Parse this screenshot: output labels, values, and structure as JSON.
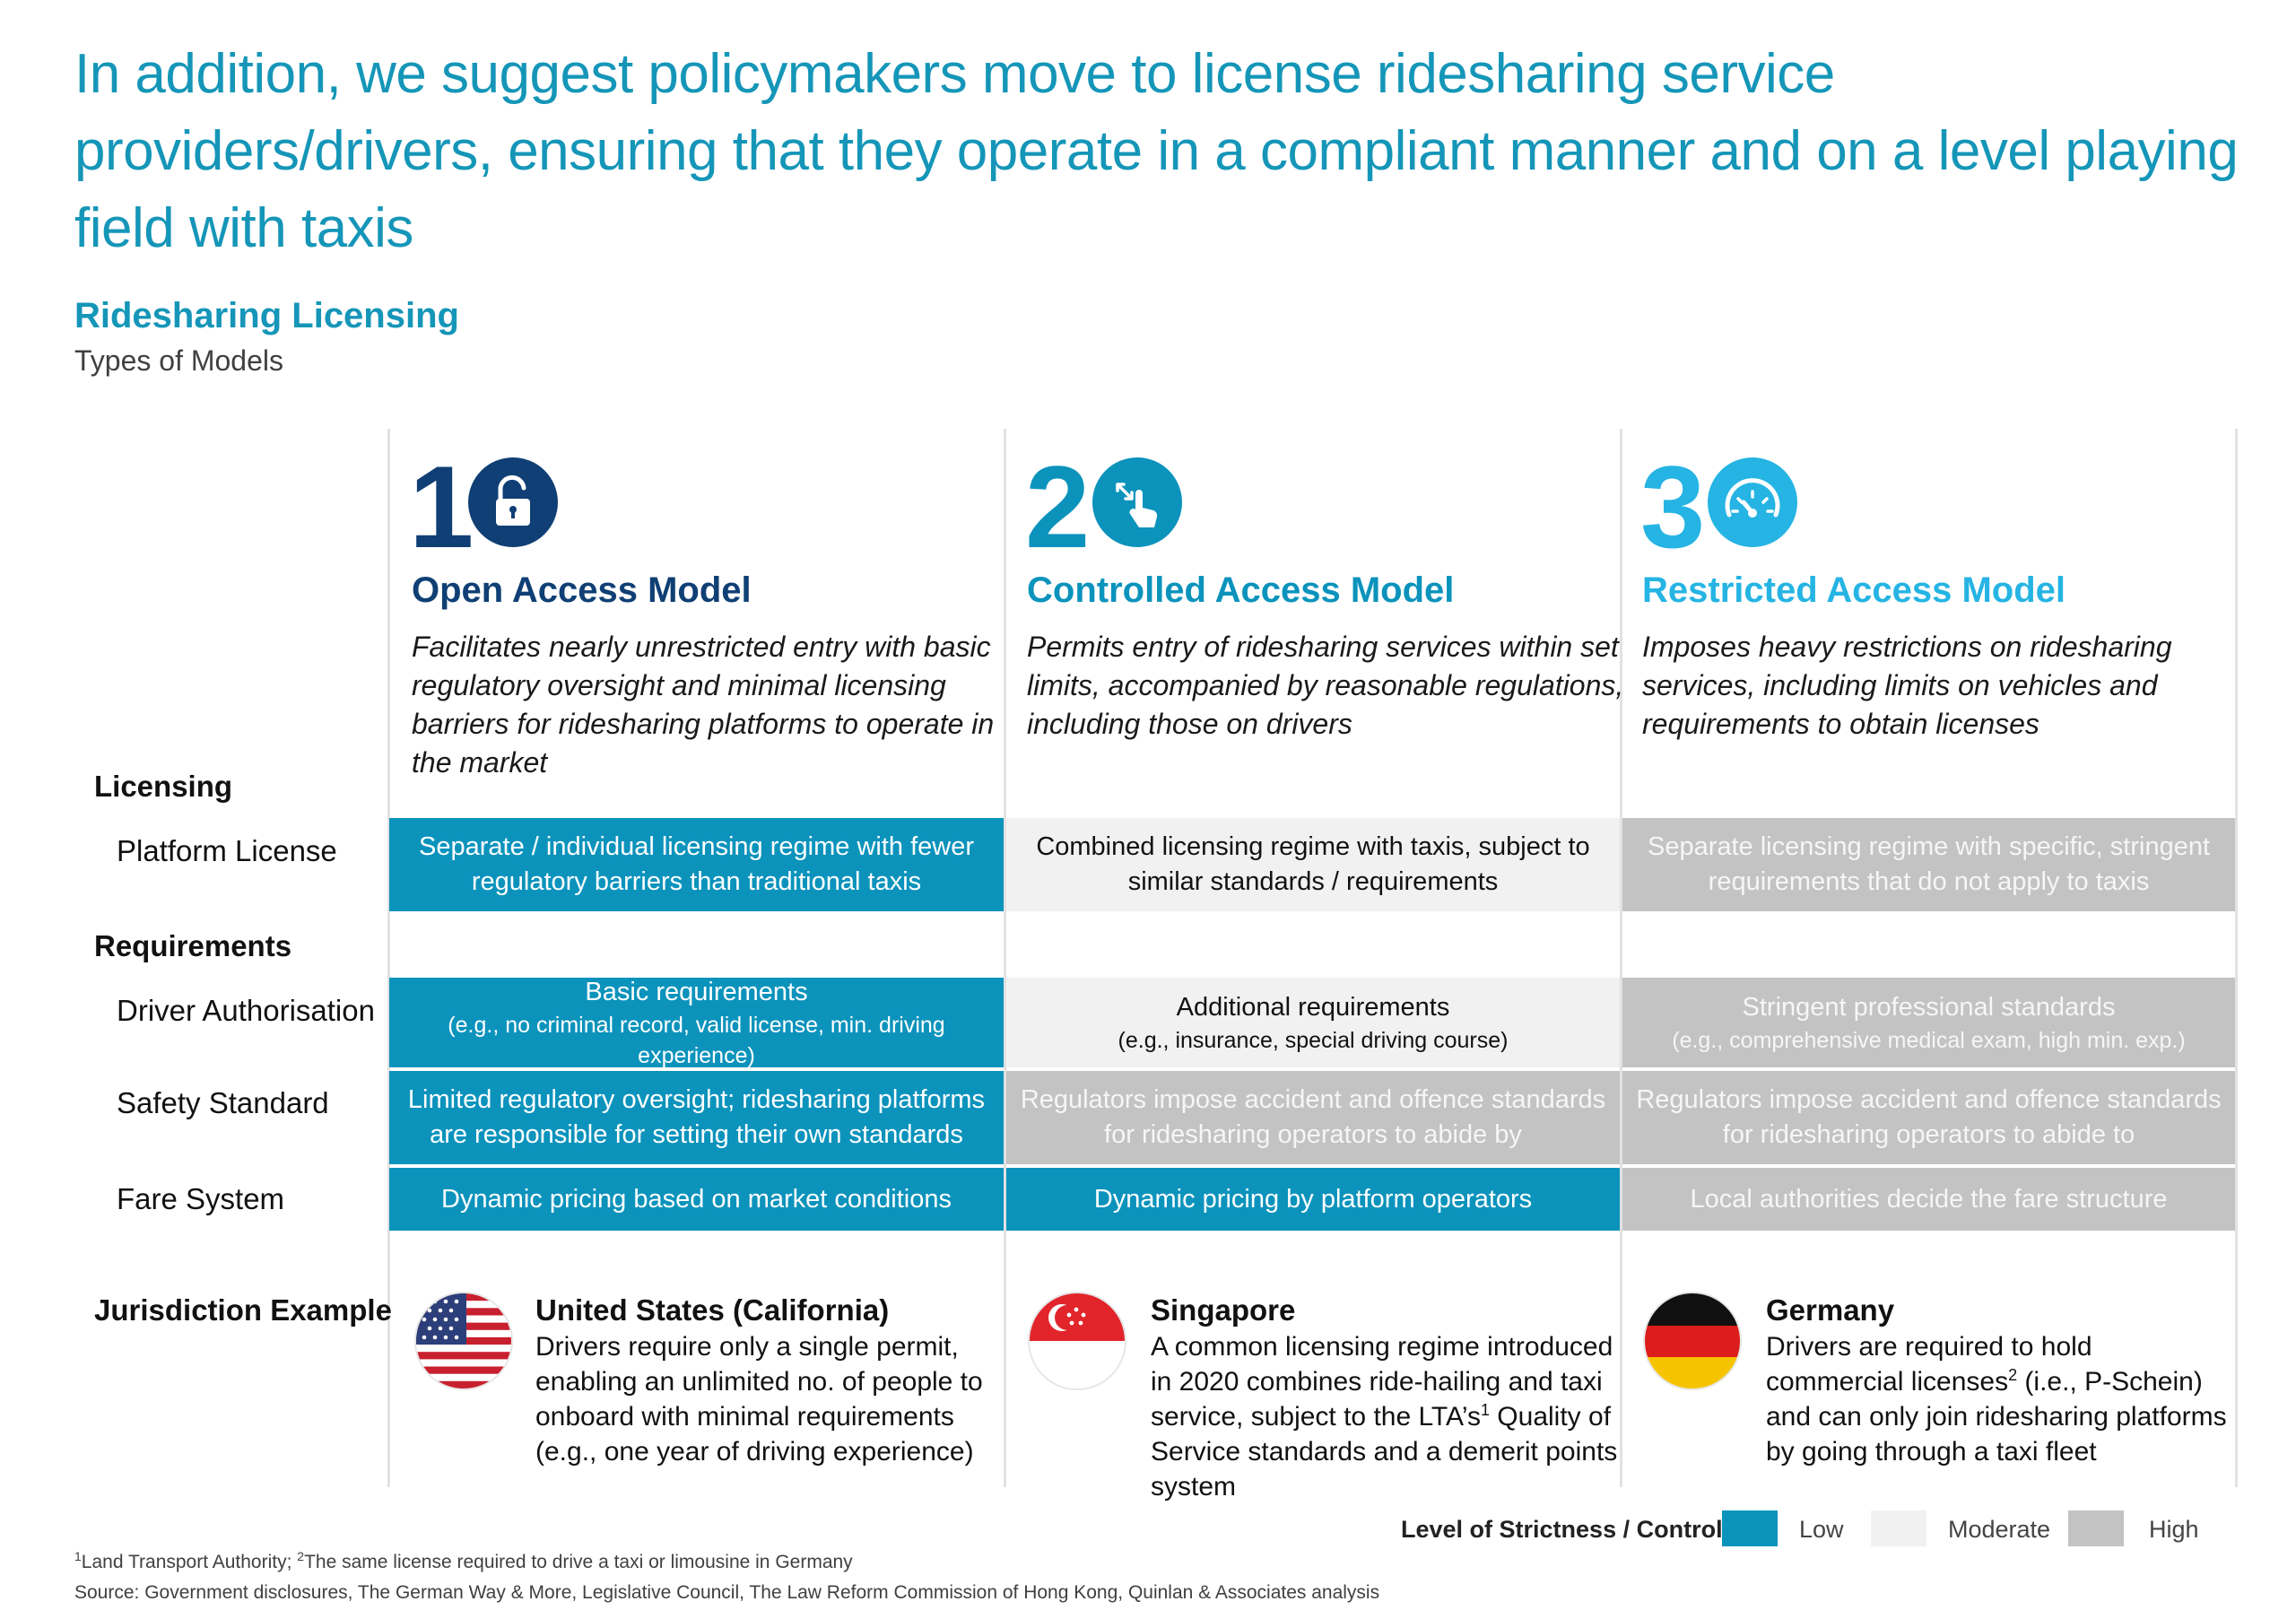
{
  "title": "In addition, we suggest policymakers move to license ridesharing service providers/drivers, ensuring that they operate in a compliant manner and on a level playing field with taxis",
  "section": {
    "heading": "Ridesharing Licensing",
    "subheading": "Types of Models"
  },
  "colors": {
    "accent": "#1596b8",
    "navy": "#0f3f74",
    "mid_blue": "#0b93bc",
    "light_blue": "#25b4e3",
    "low": "#0b93bc",
    "moderate": "#f1f1f1",
    "high": "#c3c3c3"
  },
  "models": [
    {
      "number": "1",
      "icon": "padlock-open-icon",
      "name": "Open Access Model",
      "description": "Facilitates nearly unrestricted entry with basic regulatory oversight and minimal licensing barriers for ridesharing platforms to operate in the market"
    },
    {
      "number": "2",
      "icon": "hand-tap-icon",
      "name": "Controlled Access Model",
      "description": "Permits entry of ridesharing services within set limits, accompanied by reasonable regulations, including those on drivers"
    },
    {
      "number": "3",
      "icon": "speedometer-icon",
      "name": "Restricted Access Model",
      "description": "Imposes heavy restrictions on ridesharing services, including limits on vehicles and requirements to obtain licenses"
    }
  ],
  "row_groups": {
    "licensing": "Licensing",
    "requirements": "Requirements",
    "jurisdiction": "Jurisdiction Example"
  },
  "rows": {
    "platform_license": {
      "label": "Platform License",
      "cells": [
        {
          "level": "Low",
          "text": "Separate / individual licensing regime with fewer regulatory barriers than traditional taxis"
        },
        {
          "level": "Moderate",
          "text": "Combined licensing regime with taxis, subject to similar standards / requirements"
        },
        {
          "level": "High",
          "text": "Separate licensing regime with specific, stringent requirements that do not apply to taxis"
        }
      ]
    },
    "driver_authorisation": {
      "label": "Driver Authorisation",
      "cells": [
        {
          "level": "Low",
          "text": "Basic requirements",
          "note": "(e.g., no criminal record, valid license, min. driving experience)"
        },
        {
          "level": "Moderate",
          "text": "Additional requirements",
          "note": "(e.g., insurance, special driving course)"
        },
        {
          "level": "High",
          "text": "Stringent professional standards",
          "note": "(e.g., comprehensive medical exam, high min. exp.)"
        }
      ]
    },
    "safety_standard": {
      "label": "Safety Standard",
      "cells": [
        {
          "level": "Low",
          "text": "Limited regulatory oversight; ridesharing platforms are responsible for setting their own standards"
        },
        {
          "level": "High",
          "text": "Regulators impose accident and offence standards for ridesharing operators to abide by"
        },
        {
          "level": "High",
          "text": "Regulators impose accident and offence standards for ridesharing operators to abide to"
        }
      ]
    },
    "fare_system": {
      "label": "Fare System",
      "cells": [
        {
          "level": "Low",
          "text": "Dynamic pricing based on market conditions"
        },
        {
          "level": "Low",
          "text": "Dynamic pricing by platform operators"
        },
        {
          "level": "High",
          "text": "Local authorities decide the fare structure"
        }
      ]
    }
  },
  "jurisdictions": [
    {
      "flag": "us-flag-icon",
      "name": "United States (California)",
      "parts": [
        "Drivers require only a single permit, enabling an unlimited no. of people to onboard with minimal requirements (e.g., one year of driving experience)"
      ]
    },
    {
      "flag": "singapore-flag-icon",
      "name": "Singapore",
      "parts": [
        "A common licensing regime introduced in 2020 combines ride-hailing and taxi service, subject to the LTA’s",
        "1",
        " Quality of Service standards and a demerit points system"
      ]
    },
    {
      "flag": "germany-flag-icon",
      "name": "Germany",
      "parts": [
        "Drivers are required to hold commercial licenses",
        "2",
        " (i.e., P-Schein) and can only join ridesharing platforms by going through a taxi fleet"
      ]
    }
  ],
  "legend": {
    "title": "Level of Strictness / Control:",
    "items": [
      "Low",
      "Moderate",
      "High"
    ]
  },
  "footnotes": {
    "note1_mark": "1",
    "note1": "Land Transport Authority; ",
    "note2_mark": "2",
    "note2": "The same license required to drive a taxi or limousine in Germany",
    "source": "Source: Government disclosures, The German Way & More, Legislative Council, The Law Reform Commission of Hong Kong, Quinlan & Associates analysis"
  }
}
